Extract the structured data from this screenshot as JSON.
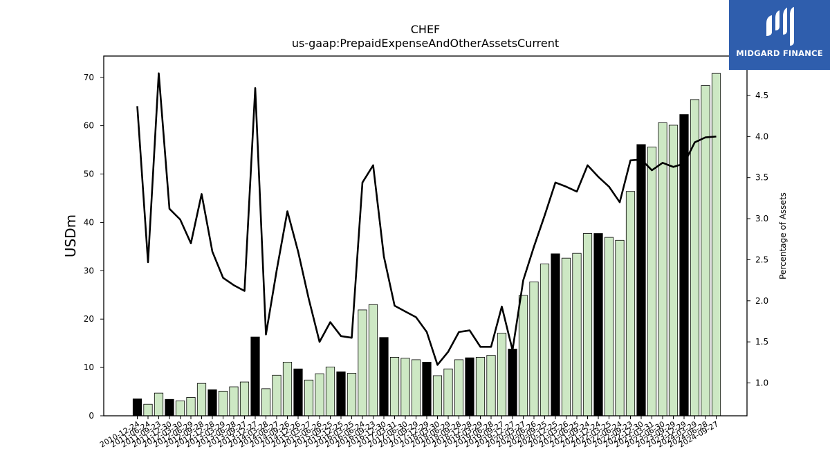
{
  "chart_data": {
    "type": "bar",
    "title": "CHEF",
    "subtitle": "us-gaap:PrepaidExpenseAndOtherAssetsCurrent",
    "ylabel": "USDm",
    "y2label": "Percentage of Assets",
    "ylim": [
      0,
      74.4
    ],
    "y2lim": [
      0.6,
      4.98
    ],
    "yticks": [
      0,
      10,
      20,
      30,
      40,
      50,
      60,
      70
    ],
    "y2ticks": [
      "1.0",
      "1.5",
      "2.0",
      "2.5",
      "3.0",
      "3.5",
      "4.0",
      "4.5"
    ],
    "categories": [
      "2010-12-24",
      "2011-06-24",
      "2011-09-23",
      "2011-12-30",
      "2012-03-30",
      "2012-06-29",
      "2012-09-28",
      "2012-12-28",
      "2013-03-29",
      "2013-06-28",
      "2013-09-27",
      "2013-12-27",
      "2014-03-28",
      "2014-06-27",
      "2014-09-26",
      "2014-12-26",
      "2015-03-27",
      "2015-06-26",
      "2015-09-25",
      "2015-12-25",
      "2016-03-25",
      "2016-06-24",
      "2016-09-23",
      "2016-12-30",
      "2017-03-31",
      "2017-06-30",
      "2017-09-29",
      "2017-12-29",
      "2018-03-30",
      "2018-06-29",
      "2018-09-28",
      "2018-12-28",
      "2019-03-29",
      "2019-06-28",
      "2019-09-27",
      "2019-12-27",
      "2020-03-27",
      "2020-06-26",
      "2020-09-25",
      "2020-12-25",
      "2021-03-26",
      "2021-06-25",
      "2021-09-24",
      "2021-12-24",
      "2022-03-25",
      "2022-06-24",
      "2022-09-23",
      "2022-12-30",
      "2023-03-31",
      "2023-06-30",
      "2023-09-29",
      "2023-12-29",
      "2024-03-29",
      "2024-06-28",
      "2024-09-27"
    ],
    "series": [
      {
        "values": [
          3.5,
          2.4,
          4.7,
          3.4,
          3.1,
          3.8,
          6.7,
          5.4,
          5.1,
          6.0,
          7.0,
          16.3,
          5.6,
          8.4,
          11.1,
          9.7,
          7.4,
          8.7,
          10.1,
          9.1,
          8.8,
          21.9,
          23.0,
          16.2,
          12.1,
          11.9,
          11.6,
          11.1,
          8.3,
          9.7,
          11.6,
          12.0,
          12.1,
          12.5,
          17.1,
          13.8,
          24.9,
          27.7,
          31.4,
          33.5,
          32.6,
          33.6,
          37.7,
          37.7,
          36.9,
          36.3,
          46.4,
          56.1,
          55.6,
          60.6,
          60.1,
          62.3,
          65.4,
          68.3,
          70.8
        ],
        "highlight": [
          true,
          false,
          false,
          true,
          false,
          false,
          false,
          true,
          false,
          false,
          false,
          true,
          false,
          false,
          false,
          true,
          false,
          false,
          false,
          true,
          false,
          false,
          false,
          true,
          false,
          false,
          false,
          true,
          false,
          false,
          false,
          true,
          false,
          false,
          false,
          true,
          false,
          false,
          false,
          true,
          false,
          false,
          false,
          true,
          false,
          false,
          false,
          true,
          false,
          false,
          false,
          true,
          false,
          false,
          false
        ]
      },
      {
        "axis": "right",
        "values": [
          4.37,
          2.47,
          4.77,
          3.12,
          2.99,
          2.7,
          3.3,
          2.6,
          2.28,
          2.19,
          2.12,
          4.59,
          1.59,
          2.37,
          3.09,
          2.6,
          2.02,
          1.5,
          1.74,
          1.57,
          1.55,
          3.44,
          3.65,
          2.54,
          1.94,
          1.87,
          1.8,
          1.62,
          1.22,
          1.38,
          1.62,
          1.64,
          1.44,
          1.44,
          1.93,
          1.4,
          2.25,
          2.66,
          3.04,
          3.44,
          3.39,
          3.33,
          3.65,
          3.51,
          3.39,
          3.2,
          3.71,
          3.72,
          3.59,
          3.68,
          3.63,
          3.67,
          3.93,
          3.99,
          4.0
        ]
      }
    ],
    "colors": {
      "bar_fill": "#cde8c4",
      "bar_highlight": "#000000",
      "bar_edge": "#000000",
      "line": "#000000"
    }
  },
  "brand": {
    "name": "MIDGARD FINANCE",
    "bg": "#2f5ead"
  }
}
